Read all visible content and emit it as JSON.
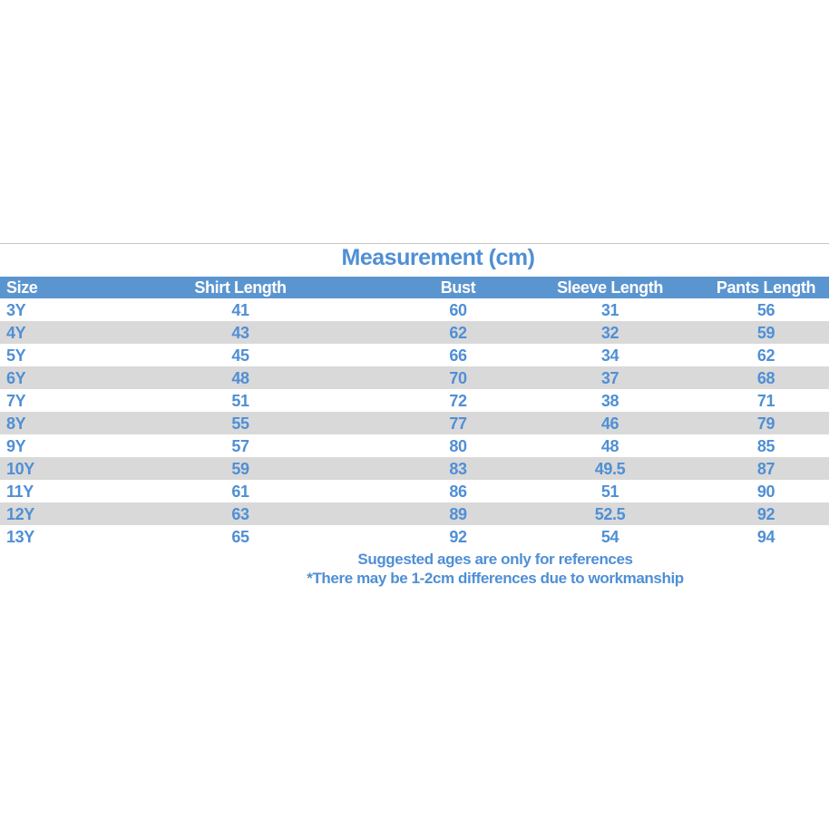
{
  "chart_data": {
    "type": "table",
    "title": "Measurement (cm)",
    "columns": [
      "Size",
      "Shirt Length",
      "Bust",
      "Sleeve Length",
      "Pants Length"
    ],
    "rows": [
      [
        "3Y",
        41,
        60,
        31,
        56
      ],
      [
        "4Y",
        43,
        62,
        32,
        59
      ],
      [
        "5Y",
        45,
        66,
        34,
        62
      ],
      [
        "6Y",
        48,
        70,
        37,
        68
      ],
      [
        "7Y",
        51,
        72,
        38,
        71
      ],
      [
        "8Y",
        55,
        77,
        46,
        79
      ],
      [
        "9Y",
        57,
        80,
        48,
        85
      ],
      [
        "10Y",
        59,
        83,
        49.5,
        87
      ],
      [
        "11Y",
        61,
        86,
        51,
        90
      ],
      [
        "12Y",
        63,
        89,
        52.5,
        92
      ],
      [
        "13Y",
        65,
        92,
        54,
        94
      ]
    ],
    "notes": [
      "Suggested ages are only for references",
      "*There may be 1-2cm differences due to workmanship"
    ],
    "layout_hints": {
      "header_style": "blue band, white text",
      "row_striping": "white / light gray alternating"
    }
  },
  "colors": {
    "header_bg": "#5b95d0",
    "header_text": "#ffffff",
    "text_blue": "#4f8fd5",
    "row_alt_bg": "#d9d9d9",
    "divider": "#c6c6c6",
    "background": "#ffffff"
  }
}
